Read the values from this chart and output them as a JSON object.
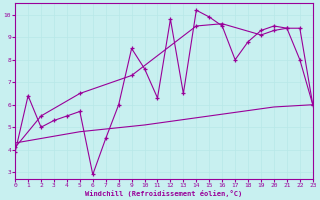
{
  "bg_color": "#c8f0f0",
  "line_color": "#990099",
  "grid_color": "#b8e8e8",
  "xlabel": "Windchill (Refroidissement éolien,°C)",
  "xlim": [
    0,
    23
  ],
  "ylim": [
    2.7,
    10.5
  ],
  "xticks": [
    0,
    1,
    2,
    3,
    4,
    5,
    6,
    7,
    8,
    9,
    10,
    11,
    12,
    13,
    14,
    15,
    16,
    17,
    18,
    19,
    20,
    21,
    22,
    23
  ],
  "yticks": [
    3,
    4,
    5,
    6,
    7,
    8,
    9,
    10
  ],
  "line1_x": [
    0,
    1,
    2,
    3,
    4,
    5,
    6,
    7,
    8,
    9,
    10,
    11,
    12,
    13,
    14,
    15,
    16,
    17,
    18,
    19,
    20,
    21,
    22,
    23
  ],
  "line1_y": [
    3.9,
    6.4,
    5.0,
    5.3,
    5.5,
    5.7,
    2.9,
    4.5,
    6.0,
    8.5,
    7.6,
    6.3,
    9.8,
    6.5,
    10.2,
    9.9,
    9.5,
    8.0,
    8.8,
    9.3,
    9.5,
    9.4,
    8.0,
    6.0
  ],
  "line2_x": [
    0,
    2,
    5,
    9,
    14,
    16,
    19,
    20,
    21,
    22,
    23
  ],
  "line2_y": [
    4.1,
    5.5,
    6.5,
    7.3,
    9.5,
    9.6,
    9.1,
    9.3,
    9.4,
    9.4,
    6.0
  ],
  "line3_x": [
    0,
    5,
    10,
    15,
    20,
    23
  ],
  "line3_y": [
    4.3,
    4.8,
    5.1,
    5.5,
    5.9,
    6.0
  ]
}
